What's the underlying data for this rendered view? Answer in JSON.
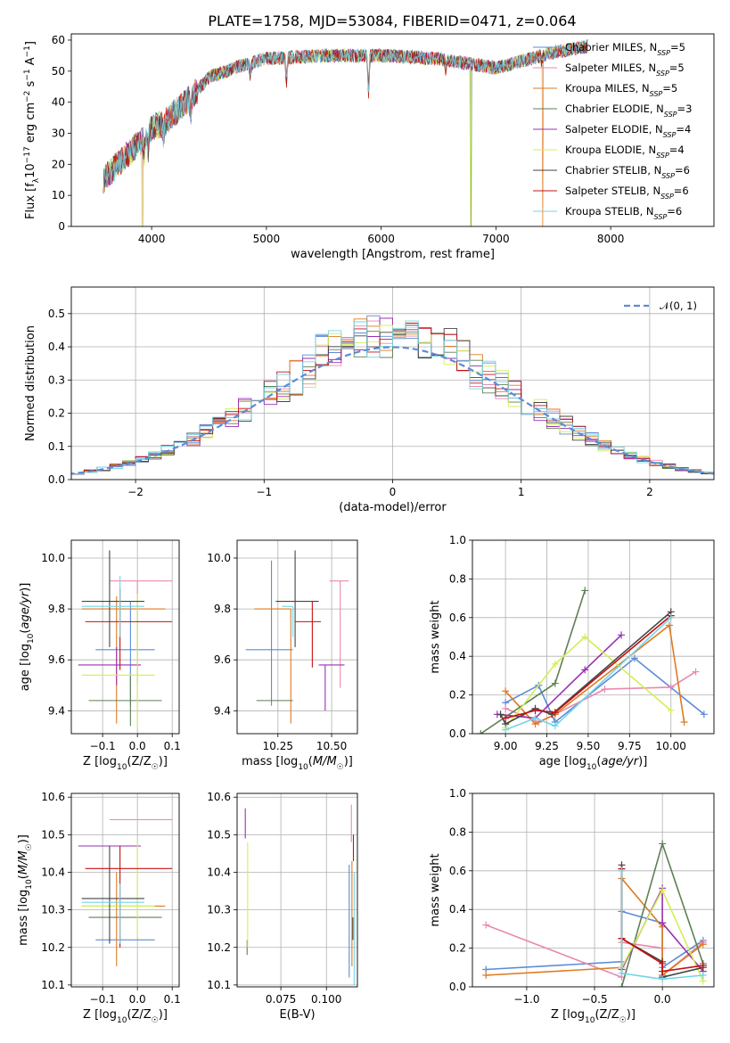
{
  "title": "PLATE=1758, MJD=53084, FIBERID=0471, z=0.064",
  "colors": {
    "Chabrier MILES": "#5b8bd6",
    "Salpeter MILES": "#e889b0",
    "Kroupa MILES": "#df7a22",
    "Chabrier ELODIE": "#5f7f55",
    "Salpeter ELODIE": "#9a2fb5",
    "Kroupa ELODIE": "#d3ee57",
    "Chabrier STELIB": "#444444",
    "Salpeter STELIB": "#c41010",
    "Kroupa STELIB": "#72d6e6"
  },
  "chart_data": [
    {
      "id": "spectrum",
      "type": "line",
      "xlabel": "wavelength [Angstrom, rest frame]",
      "ylabel": "Flux [f_λ10^-17 erg cm^-2 s^-1 A^-1]",
      "xlim": [
        3300,
        8900
      ],
      "ylim": [
        0,
        62
      ],
      "xticks": [
        4000,
        5000,
        6000,
        7000,
        8000
      ],
      "yticks": [
        0,
        10,
        20,
        30,
        40,
        50,
        60
      ],
      "continuum": {
        "x": [
          3580,
          3700,
          3900,
          4000,
          4100,
          4300,
          4500,
          4800,
          5000,
          5500,
          6000,
          6500,
          7000,
          7500,
          7800
        ],
        "y": [
          15,
          20,
          27,
          32,
          33,
          40,
          48,
          52,
          54,
          55,
          55,
          54,
          51,
          56,
          58
        ]
      },
      "legend": [
        {
          "label": "Chabrier MILES, N",
          "sub": "SSP",
          "tail": "=5"
        },
        {
          "label": "Salpeter MILES, N",
          "sub": "SSP",
          "tail": "=5"
        },
        {
          "label": "Kroupa MILES, N",
          "sub": "SSP",
          "tail": "=5"
        },
        {
          "label": "Chabrier ELODIE, N",
          "sub": "SSP",
          "tail": "=3"
        },
        {
          "label": "Salpeter ELODIE, N",
          "sub": "SSP",
          "tail": "=4"
        },
        {
          "label": "Kroupa ELODIE, N",
          "sub": "SSP",
          "tail": "=4"
        },
        {
          "label": "Chabrier STELIB, N",
          "sub": "SSP",
          "tail": "=6"
        },
        {
          "label": "Salpeter STELIB, N",
          "sub": "SSP",
          "tail": "=6"
        },
        {
          "label": "Kroupa STELIB, N",
          "sub": "SSP",
          "tail": "=6"
        }
      ],
      "legend_placement": "upper right"
    },
    {
      "id": "residuals",
      "type": "step-histogram",
      "xlabel": "(data-model)/error",
      "ylabel": "Normed distribution",
      "xlim": [
        -2.5,
        2.5
      ],
      "ylim": [
        0,
        0.58
      ],
      "xticks": [
        -2,
        -1,
        0,
        1,
        2
      ],
      "xtick_labels": [
        "−2",
        "−1",
        "0",
        "1",
        "2"
      ],
      "yticks": [
        0,
        0.1,
        0.2,
        0.3,
        0.4,
        0.5
      ],
      "bin_width": 0.1,
      "gaussian_label": "𝒩(0, 1)",
      "grid": true
    },
    {
      "id": "age-vs-z",
      "type": "errorbar",
      "xlabel": "Z [log10(Z/Z☉)]",
      "ylabel": "age  [log10(age/yr)]",
      "xlim": [
        -0.19,
        0.12
      ],
      "ylim": [
        9.31,
        10.07
      ],
      "xticks": [
        -0.1,
        0.0,
        0.1
      ],
      "xtick_labels": [
        "−0.1",
        "0.0",
        "0.1"
      ],
      "yticks": [
        9.4,
        9.6,
        9.8,
        10.0
      ],
      "points": [
        {
          "model": "Chabrier MILES",
          "x": -0.02,
          "xerr": [
            0.1,
            0.07
          ],
          "y": 9.64,
          "yerr": [
            0.22,
            0.19
          ]
        },
        {
          "model": "Salpeter MILES",
          "x": 0.0,
          "xerr": [
            0.08,
            0.1
          ],
          "y": 9.91,
          "yerr": [
            0.4,
            0.0
          ]
        },
        {
          "model": "Kroupa MILES",
          "x": -0.06,
          "xerr": [
            0.1,
            0.14
          ],
          "y": 9.8,
          "yerr": [
            0.45,
            0.05
          ]
        },
        {
          "model": "Chabrier ELODIE",
          "x": -0.02,
          "xerr": [
            0.12,
            0.09
          ],
          "y": 9.44,
          "yerr": [
            0.1,
            0.1
          ]
        },
        {
          "model": "Salpeter ELODIE",
          "x": -0.06,
          "xerr": [
            0.11,
            0.07
          ],
          "y": 9.58,
          "yerr": [
            0.08,
            0.07
          ]
        },
        {
          "model": "Kroupa ELODIE",
          "x": 0.0,
          "xerr": [
            0.16,
            0.05
          ],
          "y": 9.54,
          "yerr": [
            0.2,
            0.32
          ]
        },
        {
          "model": "Chabrier STELIB",
          "x": -0.08,
          "xerr": [
            0.08,
            0.1
          ],
          "y": 9.83,
          "yerr": [
            0.18,
            0.2
          ]
        },
        {
          "model": "Salpeter STELIB",
          "x": -0.05,
          "xerr": [
            0.1,
            0.15
          ],
          "y": 9.75,
          "yerr": [
            0.19,
            0.13
          ]
        },
        {
          "model": "Kroupa STELIB",
          "x": -0.05,
          "xerr": [
            0.11,
            0.07
          ],
          "y": 9.81,
          "yerr": [
            0.12,
            0.12
          ]
        }
      ]
    },
    {
      "id": "age-vs-mass",
      "type": "errorbar",
      "xlabel": "mass [log10(M/M☉)]",
      "ylabel": "",
      "xlim": [
        10.06,
        10.62
      ],
      "ylim": [
        9.31,
        10.07
      ],
      "xticks": [
        10.25,
        10.5
      ],
      "xtick_labels": [
        "10.25",
        "10.50"
      ],
      "yticks": [
        9.4,
        9.6,
        9.8,
        10.0
      ],
      "points": [
        {
          "model": "Chabrier MILES",
          "x": 10.22,
          "xerr": [
            0.12,
            0.1
          ],
          "y": 9.64,
          "yerr": [
            0.22,
            0.35
          ]
        },
        {
          "model": "Salpeter MILES",
          "x": 10.54,
          "xerr": [
            0.05,
            0.04
          ],
          "y": 9.91,
          "yerr": [
            0.42,
            0.0
          ]
        },
        {
          "model": "Kroupa MILES",
          "x": 10.31,
          "xerr": [
            0.17,
            0.0
          ],
          "y": 9.8,
          "yerr": [
            0.45,
            0.0
          ]
        },
        {
          "model": "Chabrier ELODIE",
          "x": 10.28,
          "xerr": [
            0.13,
            0.04
          ],
          "y": 9.44,
          "yerr": [
            0.0,
            0.0
          ]
        },
        {
          "model": "Salpeter ELODIE",
          "x": 10.47,
          "xerr": [
            0.03,
            0.09
          ],
          "y": 9.58,
          "yerr": [
            0.18,
            0.0
          ]
        },
        {
          "model": "Kroupa ELODIE",
          "x": 10.31,
          "xerr": [
            0.0,
            0.0
          ],
          "y": 9.54,
          "yerr": [
            0.0,
            0.0
          ]
        },
        {
          "model": "Chabrier STELIB",
          "x": 10.33,
          "xerr": [
            0.09,
            0.11
          ],
          "y": 9.83,
          "yerr": [
            0.18,
            0.2
          ]
        },
        {
          "model": "Salpeter STELIB",
          "x": 10.41,
          "xerr": [
            0.08,
            0.04
          ],
          "y": 9.75,
          "yerr": [
            0.18,
            0.08
          ]
        },
        {
          "model": "Kroupa STELIB",
          "x": 10.32,
          "xerr": [
            0.05,
            0.0
          ],
          "y": 9.81,
          "yerr": [
            0.12,
            0.0
          ]
        }
      ]
    },
    {
      "id": "weight-vs-age",
      "type": "line",
      "xlabel": "age  [log10(age/yr)]",
      "ylabel": "mass weight",
      "xlim": [
        8.8,
        10.26
      ],
      "ylim": [
        0,
        1
      ],
      "xticks": [
        9.0,
        9.25,
        9.5,
        9.75,
        10.0
      ],
      "xtick_labels": [
        "9.00",
        "9.25",
        "9.50",
        "9.75",
        "10.00"
      ],
      "yticks": [
        0,
        0.2,
        0.4,
        0.6,
        0.8,
        1.0
      ],
      "series": [
        {
          "model": "Chabrier MILES",
          "x": [
            9.0,
            9.2,
            9.3,
            9.78,
            10.2
          ],
          "y": [
            0.16,
            0.25,
            0.06,
            0.39,
            0.1
          ]
        },
        {
          "model": "Salpeter MILES",
          "x": [
            9.0,
            9.2,
            9.3,
            9.6,
            10.0,
            10.15
          ],
          "y": [
            0.13,
            0.06,
            0.1,
            0.23,
            0.24,
            0.32
          ]
        },
        {
          "model": "Kroupa MILES",
          "x": [
            9.0,
            9.18,
            9.3,
            9.99,
            10.08
          ],
          "y": [
            0.22,
            0.05,
            0.1,
            0.56,
            0.06
          ]
        },
        {
          "model": "Chabrier ELODIE",
          "x": [
            8.85,
            9.3,
            9.48
          ],
          "y": [
            0.0,
            0.26,
            0.74
          ]
        },
        {
          "model": "Salpeter ELODIE",
          "x": [
            8.95,
            9.18,
            9.48,
            9.7
          ],
          "y": [
            0.1,
            0.08,
            0.33,
            0.51
          ]
        },
        {
          "model": "Kroupa ELODIE",
          "x": [
            9.0,
            9.3,
            9.48,
            10.0
          ],
          "y": [
            0.03,
            0.36,
            0.5,
            0.12
          ]
        },
        {
          "model": "Chabrier STELIB",
          "x": [
            8.97,
            9.0,
            9.18,
            9.28,
            10.0
          ],
          "y": [
            0.1,
            0.05,
            0.13,
            0.1,
            0.63
          ]
        },
        {
          "model": "Salpeter STELIB",
          "x": [
            9.0,
            9.18,
            9.3,
            10.0
          ],
          "y": [
            0.08,
            0.12,
            0.11,
            0.61
          ]
        },
        {
          "model": "Kroupa STELIB",
          "x": [
            9.0,
            9.18,
            9.3,
            10.0
          ],
          "y": [
            0.02,
            0.08,
            0.04,
            0.6
          ]
        }
      ]
    },
    {
      "id": "mass-vs-z",
      "type": "errorbar",
      "xlabel": "Z [log10(Z/Z☉)]",
      "ylabel": "mass [log10(M/M☉)]",
      "xlim": [
        -0.19,
        0.12
      ],
      "ylim": [
        10.095,
        10.61
      ],
      "xticks": [
        -0.1,
        0.0,
        0.1
      ],
      "xtick_labels": [
        "−0.1",
        "0.0",
        "0.1"
      ],
      "yticks": [
        10.1,
        10.2,
        10.3,
        10.4,
        10.5,
        10.6
      ],
      "points": [
        {
          "model": "Chabrier MILES",
          "x": -0.02,
          "xerr": [
            0.1,
            0.07
          ],
          "y": 10.22,
          "yerr": [
            0.0,
            0.0
          ]
        },
        {
          "model": "Salpeter MILES",
          "x": 0.0,
          "xerr": [
            0.08,
            0.1
          ],
          "y": 10.54,
          "yerr": [
            0.0,
            0.0
          ]
        },
        {
          "model": "Kroupa MILES",
          "x": -0.06,
          "xerr": [
            0.1,
            0.14
          ],
          "y": 10.31,
          "yerr": [
            0.16,
            0.09
          ]
        },
        {
          "model": "Chabrier ELODIE",
          "x": -0.02,
          "xerr": [
            0.12,
            0.09
          ],
          "y": 10.28,
          "yerr": [
            0.0,
            0.0
          ]
        },
        {
          "model": "Salpeter ELODIE",
          "x": -0.06,
          "xerr": [
            0.11,
            0.07
          ],
          "y": 10.47,
          "yerr": [
            0.0,
            0.0
          ]
        },
        {
          "model": "Kroupa ELODIE",
          "x": 0.0,
          "xerr": [
            0.16,
            0.05
          ],
          "y": 10.31,
          "yerr": [
            0.08,
            0.17
          ]
        },
        {
          "model": "Chabrier STELIB",
          "x": -0.08,
          "xerr": [
            0.08,
            0.1
          ],
          "y": 10.33,
          "yerr": [
            0.12,
            0.14
          ]
        },
        {
          "model": "Salpeter STELIB",
          "x": -0.05,
          "xerr": [
            0.1,
            0.15
          ],
          "y": 10.41,
          "yerr": [
            0.21,
            0.06
          ]
        },
        {
          "model": "Kroupa STELIB",
          "x": -0.05,
          "xerr": [
            0.11,
            0.07
          ],
          "y": 10.32,
          "yerr": [
            0.11,
            0.05
          ]
        }
      ]
    },
    {
      "id": "mass-vs-ebv",
      "type": "errorbar",
      "xlabel": "E(B-V)",
      "ylabel": "",
      "xlim": [
        0.051,
        0.117
      ],
      "ylim": [
        10.095,
        10.61
      ],
      "xticks": [
        0.075,
        0.1
      ],
      "xtick_labels": [
        "0.075",
        "0.100"
      ],
      "yticks": [
        10.1,
        10.2,
        10.3,
        10.4,
        10.5,
        10.6
      ],
      "points": [
        {
          "model": "Chabrier MILES",
          "x": 0.1125,
          "xerr": [
            0,
            0
          ],
          "y": 10.27,
          "yerr": [
            0.15,
            0.15
          ]
        },
        {
          "model": "Salpeter MILES",
          "x": 0.1137,
          "xerr": [
            0,
            0
          ],
          "y": 10.48,
          "yerr": [
            0.0,
            0.1
          ]
        },
        {
          "model": "Kroupa MILES",
          "x": 0.114,
          "xerr": [
            0,
            0
          ],
          "y": 10.28,
          "yerr": [
            0.13,
            0.15
          ]
        },
        {
          "model": "Chabrier ELODIE",
          "x": 0.0565,
          "xerr": [
            0,
            0
          ],
          "y": 10.2,
          "yerr": [
            0.02,
            0.02
          ]
        },
        {
          "model": "Salpeter ELODIE",
          "x": 0.0555,
          "xerr": [
            0,
            0
          ],
          "y": 10.53,
          "yerr": [
            0.04,
            0.04
          ]
        },
        {
          "model": "Kroupa ELODIE",
          "x": 0.0568,
          "xerr": [
            0,
            0
          ],
          "y": 10.37,
          "yerr": [
            0.17,
            0.11
          ]
        },
        {
          "model": "Chabrier STELIB",
          "x": 0.1145,
          "xerr": [
            0,
            0
          ],
          "y": 10.25,
          "yerr": [
            0.03,
            0.03
          ]
        },
        {
          "model": "Salpeter STELIB",
          "x": 0.1148,
          "xerr": [
            0,
            0
          ],
          "y": 10.46,
          "yerr": [
            0.03,
            0.04
          ]
        },
        {
          "model": "Kroupa STELIB",
          "x": 0.1152,
          "xerr": [
            0,
            0
          ],
          "y": 10.28,
          "yerr": [
            0.18,
            0.12
          ]
        }
      ]
    },
    {
      "id": "weight-vs-z",
      "type": "line",
      "xlabel": "Z [log10(Z/Z☉)]",
      "ylabel": "mass weight",
      "xlim": [
        -1.4,
        0.38
      ],
      "ylim": [
        0,
        1
      ],
      "xticks": [
        -1.0,
        -0.5,
        0.0
      ],
      "xtick_labels": [
        "−1.0",
        "−0.5",
        "0.0"
      ],
      "yticks": [
        0,
        0.2,
        0.4,
        0.6,
        0.8,
        1.0
      ],
      "series": [
        {
          "model": "Chabrier MILES",
          "x": [
            -1.3,
            -0.3,
            -0.3,
            0.0,
            0.0,
            0.3
          ],
          "y": [
            0.09,
            0.13,
            0.39,
            0.33,
            0.1,
            0.24
          ]
        },
        {
          "model": "Salpeter MILES",
          "x": [
            -1.3,
            -0.3,
            -0.3,
            0.0,
            0.0,
            0.3
          ],
          "y": [
            0.32,
            0.05,
            0.23,
            0.2,
            0.06,
            0.23
          ]
        },
        {
          "model": "Kroupa MILES",
          "x": [
            -1.3,
            -0.3,
            -0.3,
            0.0,
            0.0,
            0.3
          ],
          "y": [
            0.06,
            0.1,
            0.56,
            0.31,
            0.06,
            0.22
          ]
        },
        {
          "model": "Chabrier ELODIE",
          "x": [
            -0.3,
            0.0,
            0.3
          ],
          "y": [
            0.0,
            0.74,
            0.12
          ]
        },
        {
          "model": "Salpeter ELODIE",
          "x": [
            -0.3,
            0.0,
            0.0,
            0.3
          ],
          "y": [
            0.09,
            0.51,
            0.33,
            0.08
          ]
        },
        {
          "model": "Kroupa ELODIE",
          "x": [
            -0.3,
            0.0,
            0.3
          ],
          "y": [
            0.1,
            0.5,
            0.03
          ]
        },
        {
          "model": "Chabrier STELIB",
          "x": [
            -0.3,
            -0.3,
            0.0,
            0.0,
            0.3
          ],
          "y": [
            0.63,
            0.25,
            0.13,
            0.05,
            0.1
          ]
        },
        {
          "model": "Salpeter STELIB",
          "x": [
            -0.3,
            -0.3,
            0.0,
            0.0,
            0.3
          ],
          "y": [
            0.61,
            0.25,
            0.12,
            0.08,
            0.11
          ]
        },
        {
          "model": "Kroupa STELIB",
          "x": [
            -0.3,
            -0.3,
            0.0,
            0.3
          ],
          "y": [
            0.6,
            0.07,
            0.04,
            0.06
          ]
        }
      ]
    }
  ]
}
